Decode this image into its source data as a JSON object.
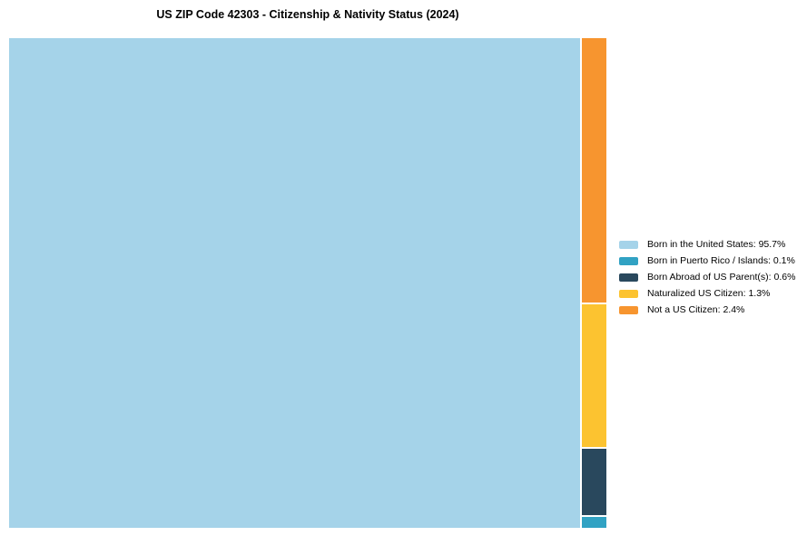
{
  "chart_data": {
    "type": "treemap",
    "title": "US ZIP Code 42303 - Citizenship & Nativity Status (2024)",
    "legend_position": "right",
    "background_color": "#ffffff",
    "items": [
      {
        "label": "Born in the United States",
        "value": 95.7,
        "color": "#a5d3e9"
      },
      {
        "label": "Born in Puerto Rico / Islands",
        "value": 0.1,
        "color": "#31a2c3"
      },
      {
        "label": "Born Abroad of US Parent(s)",
        "value": 0.6,
        "color": "#29485d"
      },
      {
        "label": "Naturalized US Citizen",
        "value": 1.3,
        "color": "#fcc330"
      },
      {
        "label": "Not a US Citizen",
        "value": 2.4,
        "color": "#f7952f"
      }
    ]
  }
}
